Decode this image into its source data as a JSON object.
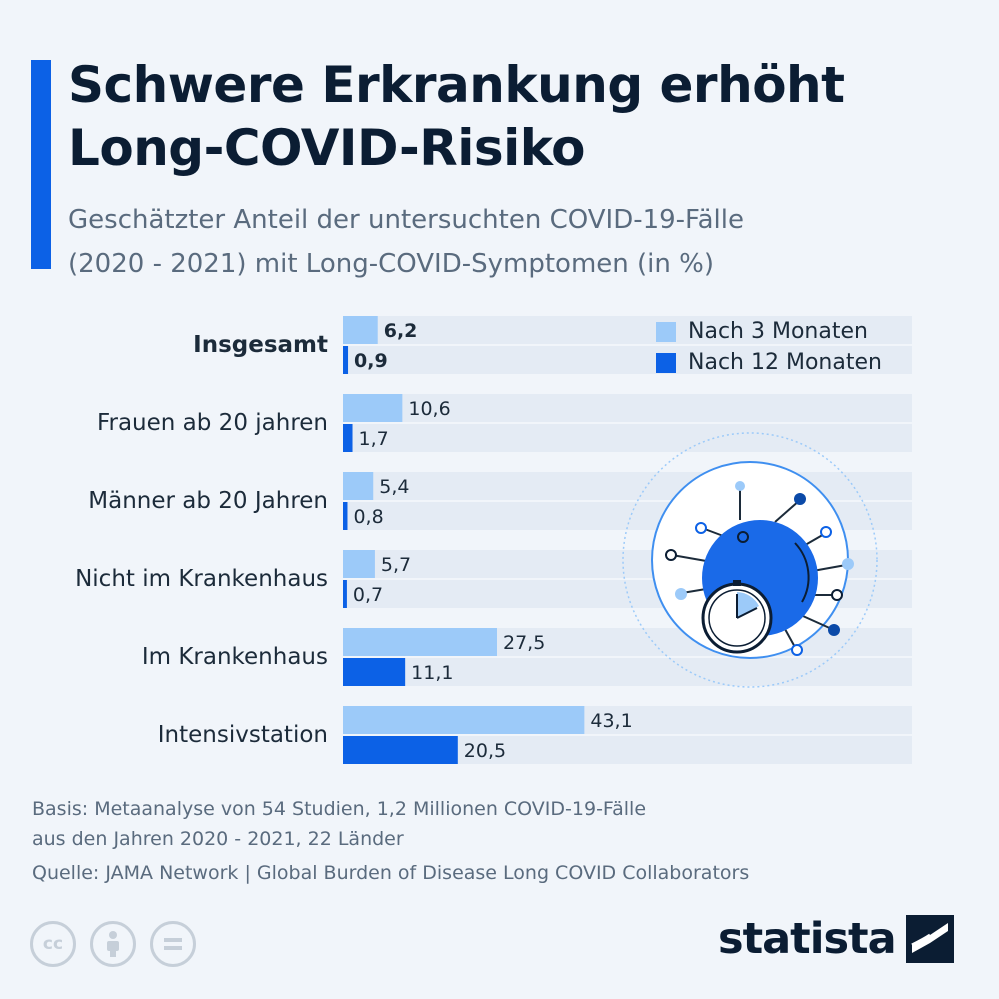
{
  "header": {
    "title_line1": "Schwere Erkrankung erhöht",
    "title_line2": "Long-COVID-Risiko",
    "subtitle_line1": "Geschätzter Anteil der untersuchten COVID-19-Fälle",
    "subtitle_line2": "(2020 - 2021) mit Long-COVID-Symptomen (in %)"
  },
  "legend": {
    "items": [
      {
        "label": "Nach 3 Monaten",
        "color": "#9ccaf9"
      },
      {
        "label": "Nach 12 Monaten",
        "color": "#0c61e6"
      }
    ]
  },
  "chart_data": {
    "type": "bar",
    "orientation": "horizontal",
    "categories": [
      "Insgesamt",
      "Frauen ab 20 jahren",
      "Männer ab 20 Jahren",
      "Nicht im Krankenhaus",
      "Im Krankenhaus",
      "Intensivstation"
    ],
    "bold_categories": [
      "Insgesamt"
    ],
    "series": [
      {
        "name": "Nach 3 Monaten",
        "color": "#9ccaf9",
        "values": [
          6.2,
          10.6,
          5.4,
          5.7,
          27.5,
          43.1
        ],
        "labels": [
          "6,2",
          "10,6",
          "5,4",
          "5,7",
          "27,5",
          "43,1"
        ]
      },
      {
        "name": "Nach 12 Monaten",
        "color": "#0c61e6",
        "values": [
          0.9,
          1.7,
          0.8,
          0.7,
          11.1,
          20.5
        ],
        "labels": [
          "0,9",
          "1,7",
          "0,8",
          "0,7",
          "11,1",
          "20,5"
        ]
      }
    ],
    "xlim": [
      0,
      100
    ],
    "legend_position": "top-right"
  },
  "footer": {
    "basis_line1": "Basis: Metaanalyse von 54 Studien, 1,2 Millionen COVID-19-Fälle",
    "basis_line2": "aus den Jahren 2020 - 2021, 22 Länder",
    "source": "Quelle: JAMA Network | Global Burden of Disease Long COVID Collaborators"
  },
  "license_icons": [
    "cc-icon",
    "attribution-icon",
    "no-derivatives-icon"
  ],
  "brand": {
    "name": "statista"
  }
}
